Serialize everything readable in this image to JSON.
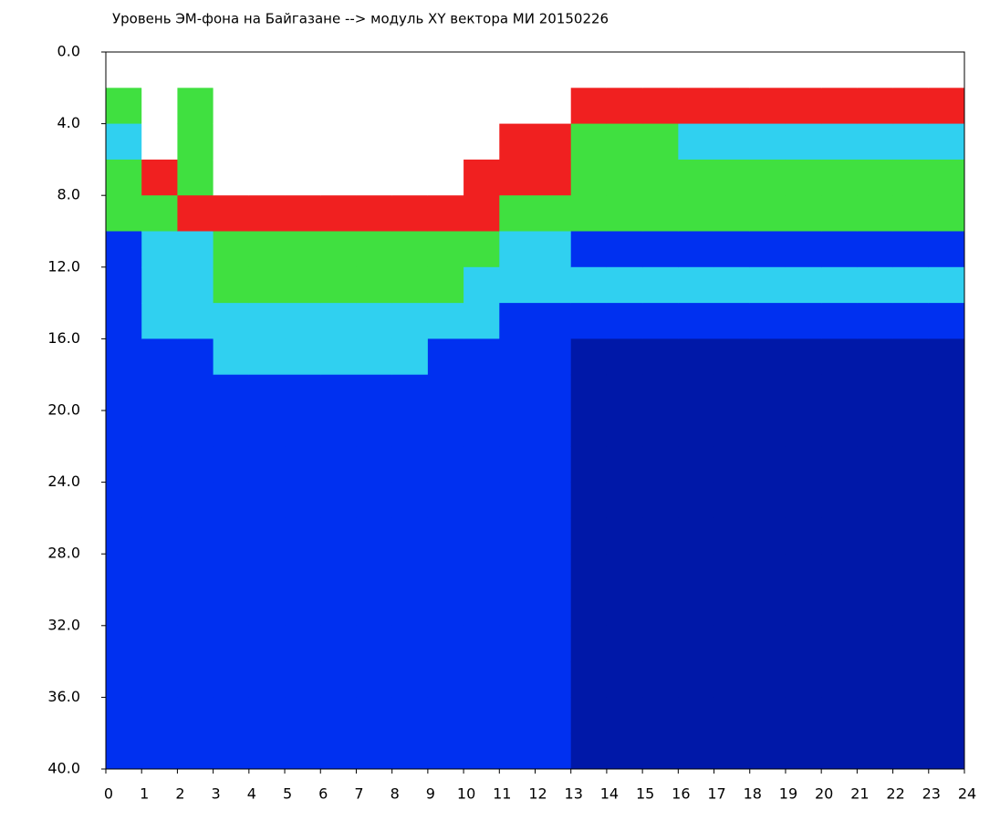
{
  "chart_data": {
    "type": "heatmap",
    "title": "Уровень ЭМ-фона на Байгазане  --> модуль XY вектора МИ  20150226",
    "xbins": [
      0,
      1,
      2,
      3,
      4,
      5,
      6,
      7,
      8,
      9,
      10,
      11,
      12,
      13,
      14,
      15,
      16,
      17,
      18,
      19,
      20,
      21,
      22,
      23,
      24
    ],
    "ybins": [
      0,
      2,
      4,
      6,
      8,
      10,
      12,
      14,
      16,
      18,
      20,
      22,
      24,
      26,
      28,
      30,
      32,
      34,
      36,
      38,
      40
    ],
    "colorscale": [
      "#0018a8",
      "#0030f0",
      "#30d0f0",
      "#40e040",
      "#f02020",
      "#ffffff"
    ],
    "z": [
      [
        5,
        3,
        2,
        3,
        3,
        1,
        1,
        1,
        1,
        1,
        1,
        1,
        1,
        1,
        1,
        1,
        1,
        1,
        1,
        1
      ],
      [
        5,
        5,
        5,
        4,
        3,
        2,
        2,
        2,
        1,
        1,
        1,
        1,
        1,
        1,
        1,
        1,
        1,
        1,
        1,
        1
      ],
      [
        5,
        3,
        3,
        3,
        4,
        2,
        2,
        2,
        1,
        1,
        1,
        1,
        1,
        1,
        1,
        1,
        1,
        1,
        1,
        1
      ],
      [
        5,
        5,
        5,
        5,
        4,
        3,
        3,
        2,
        2,
        1,
        1,
        1,
        1,
        1,
        1,
        1,
        1,
        1,
        1,
        1
      ],
      [
        5,
        5,
        5,
        5,
        4,
        3,
        3,
        2,
        2,
        1,
        1,
        1,
        1,
        1,
        1,
        1,
        1,
        1,
        1,
        1
      ],
      [
        5,
        5,
        5,
        5,
        4,
        3,
        3,
        2,
        2,
        1,
        1,
        1,
        1,
        1,
        1,
        1,
        1,
        1,
        1,
        1
      ],
      [
        5,
        5,
        5,
        5,
        4,
        3,
        3,
        2,
        2,
        1,
        1,
        1,
        1,
        1,
        1,
        1,
        1,
        1,
        1,
        1
      ],
      [
        5,
        5,
        5,
        5,
        4,
        3,
        3,
        2,
        2,
        1,
        1,
        1,
        1,
        1,
        1,
        1,
        1,
        1,
        1,
        1
      ],
      [
        5,
        5,
        5,
        5,
        4,
        3,
        3,
        2,
        2,
        1,
        1,
        1,
        1,
        1,
        1,
        1,
        1,
        1,
        1,
        1
      ],
      [
        5,
        5,
        5,
        5,
        4,
        3,
        3,
        2,
        1,
        1,
        1,
        1,
        1,
        1,
        1,
        1,
        1,
        1,
        1,
        1
      ],
      [
        5,
        5,
        5,
        4,
        4,
        3,
        2,
        2,
        1,
        1,
        1,
        1,
        1,
        1,
        1,
        1,
        1,
        1,
        1,
        1
      ],
      [
        5,
        5,
        4,
        4,
        3,
        2,
        2,
        1,
        1,
        1,
        1,
        1,
        1,
        1,
        1,
        1,
        1,
        1,
        1,
        1
      ],
      [
        5,
        5,
        4,
        4,
        3,
        2,
        2,
        1,
        1,
        1,
        1,
        1,
        1,
        1,
        1,
        1,
        1,
        1,
        1,
        1
      ],
      [
        5,
        4,
        3,
        3,
        3,
        1,
        2,
        1,
        0,
        0,
        0,
        0,
        0,
        0,
        0,
        0,
        0,
        0,
        0,
        0
      ],
      [
        5,
        4,
        3,
        3,
        3,
        1,
        2,
        1,
        0,
        0,
        0,
        0,
        0,
        0,
        0,
        0,
        0,
        0,
        0,
        0
      ],
      [
        5,
        4,
        3,
        3,
        3,
        1,
        2,
        1,
        0,
        0,
        0,
        0,
        0,
        0,
        0,
        0,
        0,
        0,
        0,
        0
      ],
      [
        5,
        4,
        2,
        3,
        3,
        1,
        2,
        1,
        0,
        0,
        0,
        0,
        0,
        0,
        0,
        0,
        0,
        0,
        0,
        0
      ],
      [
        5,
        4,
        2,
        3,
        3,
        1,
        2,
        1,
        0,
        0,
        0,
        0,
        0,
        0,
        0,
        0,
        0,
        0,
        0,
        0
      ],
      [
        5,
        4,
        2,
        3,
        3,
        1,
        2,
        1,
        0,
        0,
        0,
        0,
        0,
        0,
        0,
        0,
        0,
        0,
        0,
        0
      ],
      [
        5,
        4,
        2,
        3,
        3,
        1,
        2,
        1,
        0,
        0,
        0,
        0,
        0,
        0,
        0,
        0,
        0,
        0,
        0,
        0
      ],
      [
        5,
        4,
        2,
        3,
        3,
        1,
        2,
        1,
        0,
        0,
        0,
        0,
        0,
        0,
        0,
        0,
        0,
        0,
        0,
        0
      ],
      [
        5,
        4,
        2,
        3,
        3,
        1,
        2,
        1,
        0,
        0,
        0,
        0,
        0,
        0,
        0,
        0,
        0,
        0,
        0,
        0
      ],
      [
        5,
        4,
        2,
        3,
        3,
        1,
        2,
        1,
        0,
        0,
        0,
        0,
        0,
        0,
        0,
        0,
        0,
        0,
        0,
        0
      ],
      [
        5,
        4,
        2,
        3,
        3,
        1,
        2,
        1,
        0,
        0,
        0,
        0,
        0,
        0,
        0,
        0,
        0,
        0,
        0,
        0
      ]
    ],
    "xlim": [
      0,
      24
    ],
    "xticks": [
      0,
      1,
      2,
      3,
      4,
      5,
      6,
      7,
      8,
      9,
      10,
      11,
      12,
      13,
      14,
      15,
      16,
      17,
      18,
      19,
      20,
      21,
      22,
      23,
      24
    ],
    "ylim": [
      0,
      40
    ],
    "y_inverted": true,
    "yticks": [
      {
        "value": 0,
        "label": "0.0"
      },
      {
        "value": 4,
        "label": "4.0"
      },
      {
        "value": 8,
        "label": "8.0"
      },
      {
        "value": 12,
        "label": "12.0"
      },
      {
        "value": 16,
        "label": "16.0"
      },
      {
        "value": 20,
        "label": "20.0"
      },
      {
        "value": 24,
        "label": "24.0"
      },
      {
        "value": 28,
        "label": "28.0"
      },
      {
        "value": 32,
        "label": "32.0"
      },
      {
        "value": 36,
        "label": "36.0"
      },
      {
        "value": 40,
        "label": "40.0"
      }
    ],
    "grid": false
  }
}
